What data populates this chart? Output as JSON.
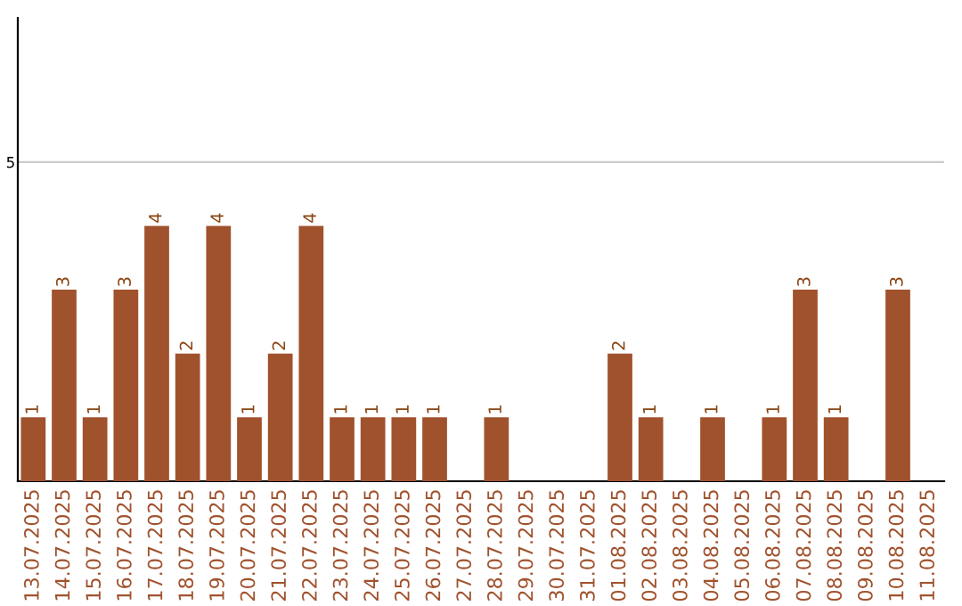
{
  "chart_data": {
    "type": "bar",
    "categories": [
      "13.07.2025",
      "14.07.2025",
      "15.07.2025",
      "16.07.2025",
      "17.07.2025",
      "18.07.2025",
      "19.07.2025",
      "20.07.2025",
      "21.07.2025",
      "22.07.2025",
      "23.07.2025",
      "24.07.2025",
      "25.07.2025",
      "26.07.2025",
      "27.07.2025",
      "28.07.2025",
      "29.07.2025",
      "30.07.2025",
      "31.07.2025",
      "01.08.2025",
      "02.08.2025",
      "03.08.2025",
      "04.08.2025",
      "05.08.2025",
      "06.08.2025",
      "07.08.2025",
      "08.08.2025",
      "09.08.2025",
      "10.08.2025",
      "11.08.2025"
    ],
    "values": [
      1,
      3,
      1,
      3,
      4,
      2,
      4,
      1,
      2,
      4,
      1,
      1,
      1,
      1,
      null,
      1,
      null,
      null,
      null,
      2,
      1,
      null,
      1,
      null,
      1,
      3,
      1,
      null,
      3,
      null
    ],
    "color": "#a0522d",
    "ylim": [
      0,
      7.26
    ],
    "yticks": [
      5
    ],
    "grid": "y",
    "data_labels": true
  }
}
